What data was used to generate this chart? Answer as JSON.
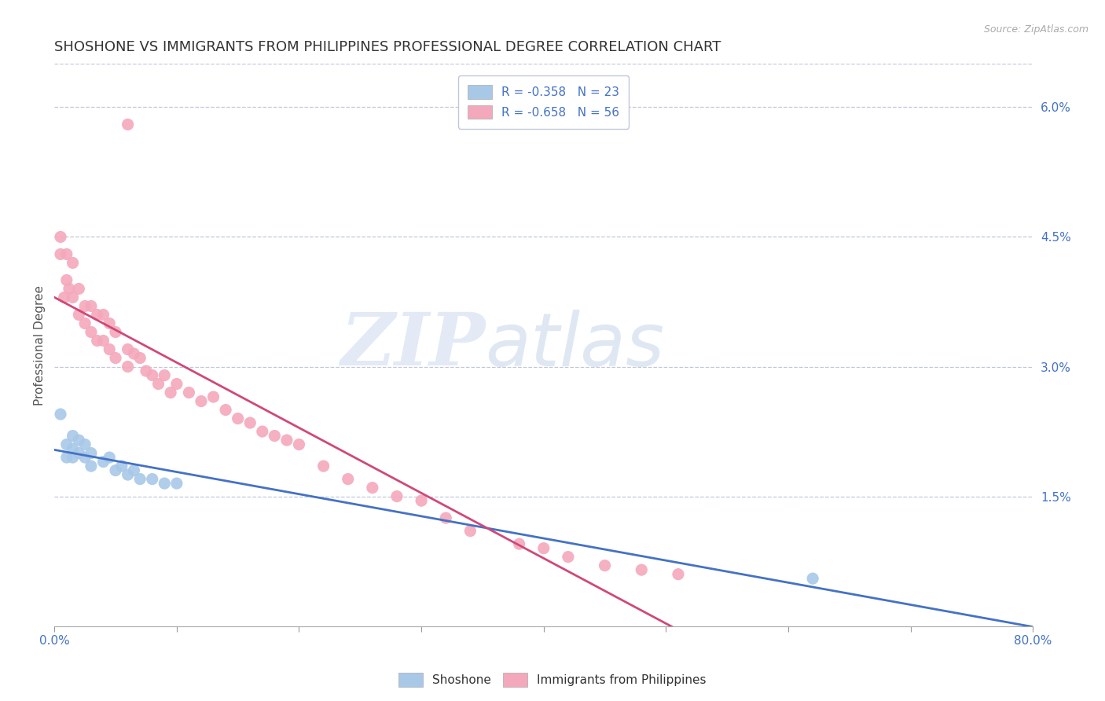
{
  "title": "SHOSHONE VS IMMIGRANTS FROM PHILIPPINES PROFESSIONAL DEGREE CORRELATION CHART",
  "source_text": "Source: ZipAtlas.com",
  "ylabel": "Professional Degree",
  "xlim": [
    0.0,
    0.8
  ],
  "ylim": [
    0.0,
    0.065
  ],
  "xticks": [
    0.0,
    0.1,
    0.2,
    0.3,
    0.4,
    0.5,
    0.6,
    0.7,
    0.8
  ],
  "xticklabels": [
    "0.0%",
    "",
    "",
    "",
    "",
    "",
    "",
    "",
    "80.0%"
  ],
  "yticks_right": [
    0.0,
    0.015,
    0.03,
    0.045,
    0.06
  ],
  "yticklabels_right": [
    "",
    "1.5%",
    "3.0%",
    "4.5%",
    "6.0%"
  ],
  "legend_r1": "R = -0.358",
  "legend_n1": "N = 23",
  "legend_r2": "R = -0.658",
  "legend_n2": "N = 56",
  "color_blue": "#a8c8e8",
  "color_pink": "#f4a8bc",
  "line_color_blue": "#4472c4",
  "line_color_pink": "#d04878",
  "watermark_zip": "ZIP",
  "watermark_atlas": "atlas",
  "title_fontsize": 13,
  "axis_label_color": "#4472c4",
  "grid_color": "#c0c8d8",
  "shoshone_x": [
    0.005,
    0.01,
    0.01,
    0.015,
    0.015,
    0.015,
    0.02,
    0.02,
    0.025,
    0.025,
    0.03,
    0.03,
    0.04,
    0.045,
    0.05,
    0.055,
    0.06,
    0.065,
    0.07,
    0.08,
    0.09,
    0.1,
    0.62
  ],
  "shoshone_y": [
    0.0245,
    0.021,
    0.0195,
    0.022,
    0.0205,
    0.0195,
    0.0215,
    0.02,
    0.021,
    0.0195,
    0.02,
    0.0185,
    0.019,
    0.0195,
    0.018,
    0.0185,
    0.0175,
    0.018,
    0.017,
    0.017,
    0.0165,
    0.0165,
    0.0055
  ],
  "philippines_x": [
    0.005,
    0.005,
    0.008,
    0.01,
    0.01,
    0.012,
    0.015,
    0.015,
    0.02,
    0.02,
    0.025,
    0.025,
    0.03,
    0.03,
    0.035,
    0.035,
    0.04,
    0.04,
    0.045,
    0.045,
    0.05,
    0.05,
    0.06,
    0.06,
    0.065,
    0.07,
    0.075,
    0.08,
    0.085,
    0.09,
    0.095,
    0.1,
    0.11,
    0.12,
    0.13,
    0.14,
    0.15,
    0.16,
    0.17,
    0.18,
    0.19,
    0.2,
    0.22,
    0.24,
    0.26,
    0.28,
    0.3,
    0.32,
    0.34,
    0.38,
    0.4,
    0.42,
    0.45,
    0.48,
    0.51,
    0.06
  ],
  "philippines_y": [
    0.045,
    0.043,
    0.038,
    0.043,
    0.04,
    0.039,
    0.042,
    0.038,
    0.039,
    0.036,
    0.037,
    0.035,
    0.037,
    0.034,
    0.036,
    0.033,
    0.036,
    0.033,
    0.035,
    0.032,
    0.034,
    0.031,
    0.032,
    0.03,
    0.0315,
    0.031,
    0.0295,
    0.029,
    0.028,
    0.029,
    0.027,
    0.028,
    0.027,
    0.026,
    0.0265,
    0.025,
    0.024,
    0.0235,
    0.0225,
    0.022,
    0.0215,
    0.021,
    0.0185,
    0.017,
    0.016,
    0.015,
    0.0145,
    0.0125,
    0.011,
    0.0095,
    0.009,
    0.008,
    0.007,
    0.0065,
    0.006,
    0.058
  ]
}
